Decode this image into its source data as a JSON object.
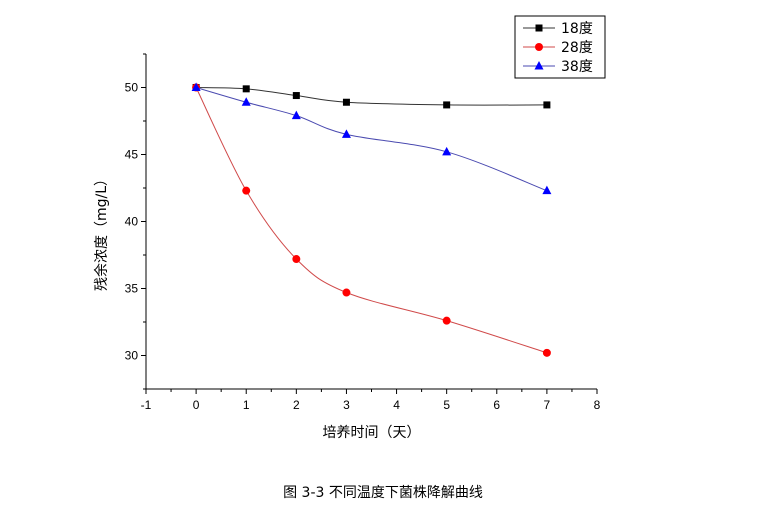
{
  "chart_data": {
    "type": "line",
    "xlabel": "培养时间（天）",
    "ylabel": "残余浓度（mg/L）",
    "xlim": [
      -1,
      8
    ],
    "ylim": [
      27.5,
      52.5
    ],
    "xticks": [
      -1,
      0,
      1,
      2,
      3,
      4,
      5,
      6,
      7,
      8
    ],
    "yticks": [
      30,
      35,
      40,
      45,
      50
    ],
    "legend_position": "top-right",
    "grid": false,
    "series": [
      {
        "name": "18度",
        "color": "#000000",
        "marker": "square",
        "x": [
          0,
          1,
          2,
          3,
          5,
          7
        ],
        "y": [
          50.0,
          49.9,
          49.4,
          48.9,
          48.7,
          48.7
        ]
      },
      {
        "name": "28度",
        "color": "#ff0000",
        "marker": "circle",
        "x": [
          0,
          1,
          2,
          3,
          5,
          7
        ],
        "y": [
          50.0,
          42.3,
          37.2,
          34.7,
          32.6,
          30.2
        ]
      },
      {
        "name": "38度",
        "color": "#0000ff",
        "marker": "triangle",
        "x": [
          0,
          1,
          2,
          3,
          5,
          7
        ],
        "y": [
          50.0,
          48.9,
          47.9,
          46.5,
          45.2,
          42.3
        ]
      }
    ]
  },
  "caption": "图 3-3 不同温度下菌株降解曲线"
}
